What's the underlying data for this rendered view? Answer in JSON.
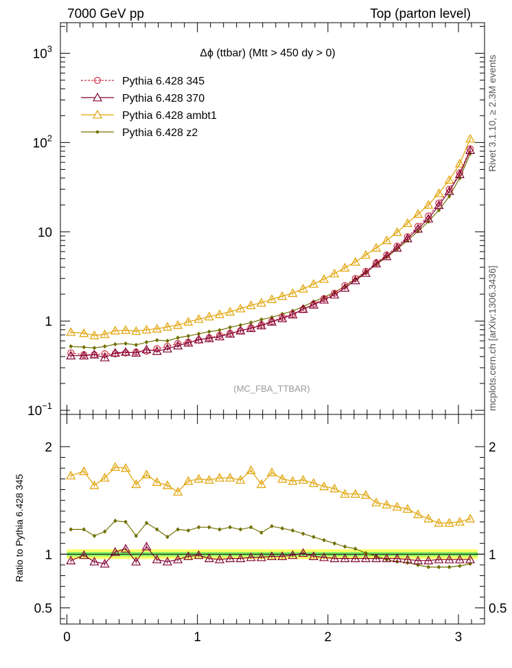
{
  "header": {
    "left_title": "7000 GeV pp",
    "right_title": "Top (parton level)"
  },
  "side_labels": {
    "rivet": "Rivet 3.1.10, ≥ 2.3M events",
    "mcplots": "mcplots.cern.ch [arXiv:1306.3436]"
  },
  "chart_data": [
    {
      "type": "line",
      "title": "Δϕ (ttbar) (Mtt > 450 dy > 0)",
      "analysis_label": "(MC_FBA_TTBAR)",
      "yscale": "log",
      "ylim": [
        0.09,
        2200
      ],
      "xlim": [
        -0.05,
        3.2
      ],
      "yticks": [
        {
          "value": 0.1,
          "base": "10",
          "exp": "−1"
        },
        {
          "value": 1,
          "base": "1",
          "exp": ""
        },
        {
          "value": 10,
          "base": "10",
          "exp": ""
        },
        {
          "value": 100,
          "base": "10",
          "exp": "2"
        },
        {
          "value": 1000,
          "base": "10",
          "exp": "3"
        }
      ],
      "x": [
        0.03,
        0.13,
        0.21,
        0.29,
        0.37,
        0.45,
        0.53,
        0.61,
        0.69,
        0.77,
        0.85,
        0.93,
        1.01,
        1.09,
        1.17,
        1.25,
        1.33,
        1.41,
        1.49,
        1.57,
        1.65,
        1.73,
        1.81,
        1.89,
        1.97,
        2.05,
        2.13,
        2.21,
        2.29,
        2.37,
        2.45,
        2.53,
        2.61,
        2.69,
        2.77,
        2.85,
        2.93,
        3.01,
        3.09
      ],
      "series": [
        {
          "name": "Pythia 6.428 345",
          "color": "#cc3344",
          "marker": "circle",
          "dashed": true,
          "values": [
            0.44,
            0.42,
            0.42,
            0.43,
            0.43,
            0.44,
            0.45,
            0.46,
            0.49,
            0.52,
            0.56,
            0.58,
            0.61,
            0.65,
            0.69,
            0.73,
            0.78,
            0.84,
            0.91,
            0.99,
            1.1,
            1.2,
            1.35,
            1.55,
            1.78,
            2.05,
            2.5,
            3.0,
            3.6,
            4.5,
            5.5,
            6.9,
            8.8,
            11.5,
            15,
            21,
            30,
            46,
            85
          ]
        },
        {
          "name": "Pythia 6.428 370",
          "color": "#800033",
          "marker": "triangle",
          "dashed": false,
          "values": [
            0.41,
            0.41,
            0.42,
            0.39,
            0.44,
            0.45,
            0.44,
            0.48,
            0.46,
            0.49,
            0.53,
            0.57,
            0.62,
            0.64,
            0.67,
            0.72,
            0.78,
            0.83,
            0.89,
            0.98,
            1.07,
            1.18,
            1.36,
            1.52,
            1.73,
            1.97,
            2.35,
            2.85,
            3.45,
            4.4,
            5.3,
            6.6,
            8.4,
            10.8,
            14,
            19.8,
            28.5,
            44,
            82
          ]
        },
        {
          "name": "Pythia 6.428 ambt1",
          "color": "#e0a000",
          "marker": "triangle",
          "dashed": false,
          "values": [
            0.75,
            0.73,
            0.69,
            0.71,
            0.78,
            0.79,
            0.77,
            0.8,
            0.82,
            0.86,
            0.9,
            0.98,
            1.05,
            1.12,
            1.19,
            1.27,
            1.38,
            1.5,
            1.6,
            1.75,
            1.9,
            2.05,
            2.3,
            2.6,
            2.95,
            3.4,
            3.95,
            4.6,
            5.5,
            6.6,
            8,
            9.9,
            12.5,
            15.8,
            20,
            27,
            38,
            58,
            110
          ]
        },
        {
          "name": "Pythia 6.428 z2",
          "color": "#707000",
          "marker": "dot",
          "dashed": false,
          "values": [
            0.52,
            0.51,
            0.5,
            0.52,
            0.55,
            0.56,
            0.54,
            0.58,
            0.61,
            0.6,
            0.65,
            0.68,
            0.72,
            0.76,
            0.79,
            0.85,
            0.9,
            0.96,
            1.04,
            1.1,
            1.2,
            1.3,
            1.45,
            1.65,
            1.85,
            2.1,
            2.45,
            2.95,
            3.5,
            4.3,
            5.2,
            6.4,
            8,
            10.1,
            13,
            17.5,
            25,
            40,
            75
          ]
        }
      ]
    },
    {
      "type": "line",
      "ylabel": "Ratio to Pythia 6.428 345",
      "ylim": [
        0.35,
        2.3
      ],
      "xlim": [
        -0.05,
        3.2
      ],
      "yticks": [
        "0.5",
        "1",
        "2"
      ],
      "xticks": [
        "0",
        "1",
        "2",
        "3"
      ],
      "band": {
        "green_half_width": 0.02,
        "yellow_half_width": 0.045
      },
      "x": [
        0.03,
        0.13,
        0.21,
        0.29,
        0.37,
        0.45,
        0.53,
        0.61,
        0.69,
        0.77,
        0.85,
        0.93,
        1.01,
        1.09,
        1.17,
        1.25,
        1.33,
        1.41,
        1.49,
        1.57,
        1.65,
        1.73,
        1.81,
        1.89,
        1.97,
        2.05,
        2.13,
        2.21,
        2.29,
        2.37,
        2.45,
        2.53,
        2.61,
        2.69,
        2.77,
        2.85,
        2.93,
        3.01,
        3.09
      ],
      "series": [
        {
          "name": "Pythia 6.428 345",
          "color": "#cc3344",
          "marker": "none",
          "dashed": false,
          "values": [
            1,
            1,
            1,
            1,
            1,
            1,
            1,
            1,
            1,
            1,
            1,
            1,
            1,
            1,
            1,
            1,
            1,
            1,
            1,
            1,
            1,
            1,
            1,
            1,
            1,
            1,
            1,
            1,
            1,
            1,
            1,
            1,
            1,
            1,
            1,
            1,
            1,
            1,
            1
          ]
        },
        {
          "name": "Pythia 6.428 370",
          "color": "#800033",
          "marker": "triangle",
          "dashed": false,
          "values": [
            0.94,
            0.99,
            0.93,
            0.91,
            1.02,
            1.05,
            0.93,
            1.07,
            0.95,
            0.93,
            0.95,
            0.98,
            0.99,
            0.96,
            0.95,
            0.96,
            0.96,
            0.97,
            0.97,
            0.98,
            0.98,
            0.99,
            1.01,
            0.98,
            0.97,
            0.96,
            0.96,
            0.96,
            0.96,
            0.96,
            0.96,
            0.96,
            0.95,
            0.94,
            0.94,
            0.95,
            0.95,
            0.95,
            0.95
          ]
        },
        {
          "name": "Pythia 6.428 ambt1",
          "color": "#e0a000",
          "marker": "triangle",
          "dashed": false,
          "values": [
            1.73,
            1.77,
            1.64,
            1.71,
            1.81,
            1.8,
            1.65,
            1.74,
            1.67,
            1.64,
            1.58,
            1.68,
            1.7,
            1.69,
            1.71,
            1.71,
            1.69,
            1.78,
            1.65,
            1.76,
            1.7,
            1.68,
            1.69,
            1.66,
            1.63,
            1.61,
            1.56,
            1.56,
            1.55,
            1.48,
            1.46,
            1.44,
            1.42,
            1.37,
            1.33,
            1.29,
            1.29,
            1.3,
            1.33
          ]
        },
        {
          "name": "Pythia 6.428 z2",
          "color": "#707000",
          "marker": "dot",
          "dashed": false,
          "values": [
            1.23,
            1.23,
            1.17,
            1.21,
            1.31,
            1.3,
            1.17,
            1.29,
            1.23,
            1.16,
            1.23,
            1.22,
            1.25,
            1.25,
            1.23,
            1.25,
            1.23,
            1.25,
            1.2,
            1.26,
            1.24,
            1.22,
            1.19,
            1.16,
            1.13,
            1.1,
            1.07,
            1.05,
            1.01,
            0.98,
            0.95,
            0.93,
            0.92,
            0.9,
            0.88,
            0.88,
            0.88,
            0.89,
            0.91
          ]
        }
      ]
    }
  ]
}
